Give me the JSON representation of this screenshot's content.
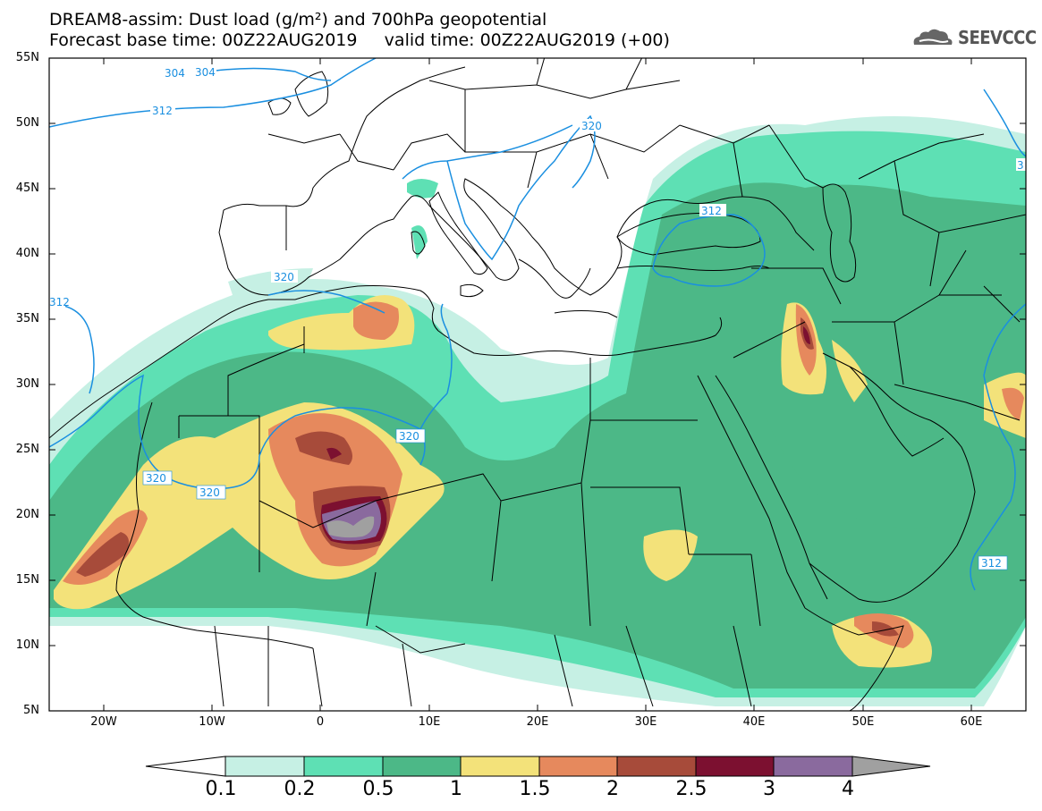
{
  "header": {
    "line1": "DREAM8-assim: Dust load (g/m²) and 700hPa geopotential",
    "line2": "Forecast base time: 00Z22AUG2019     valid time: 00Z22AUG2019 (+00)"
  },
  "logo": {
    "text": "SEEVCCC",
    "icon": "cloud-icon"
  },
  "axes": {
    "lat_labels": [
      "55N",
      "50N",
      "45N",
      "40N",
      "35N",
      "30N",
      "25N",
      "20N",
      "15N",
      "10N",
      "5N"
    ],
    "lon_labels": [
      "20W",
      "10W",
      "0",
      "10E",
      "20E",
      "30E",
      "40E",
      "50E",
      "60E"
    ]
  },
  "contour_labels": [
    "304",
    "304",
    "312",
    "320",
    "320",
    "312",
    "320",
    "320",
    "320",
    "312",
    "312",
    "3"
  ],
  "legend": {
    "ticks": [
      "0.1",
      "0.2",
      "0.5",
      "1",
      "1.5",
      "2",
      "2.5",
      "3",
      "4"
    ],
    "colors": [
      "#ffffff",
      "#c6f0e4",
      "#5ee0b4",
      "#4cb887",
      "#f3e27a",
      "#e6895d",
      "#a74b3a",
      "#7c1030",
      "#8a6a9e",
      "#a0a0a0"
    ]
  },
  "dust_colors": {
    "lv1": "#c6f0e4",
    "lv2": "#5ee0b4",
    "lv3": "#4cb887",
    "lv4": "#f3e27a",
    "lv5": "#e6895d",
    "lv6": "#a74b3a",
    "lv7": "#7c1030",
    "lv8": "#8a6a9e",
    "lv9": "#a0a0a0"
  },
  "contour_color": "#1a8fe0"
}
